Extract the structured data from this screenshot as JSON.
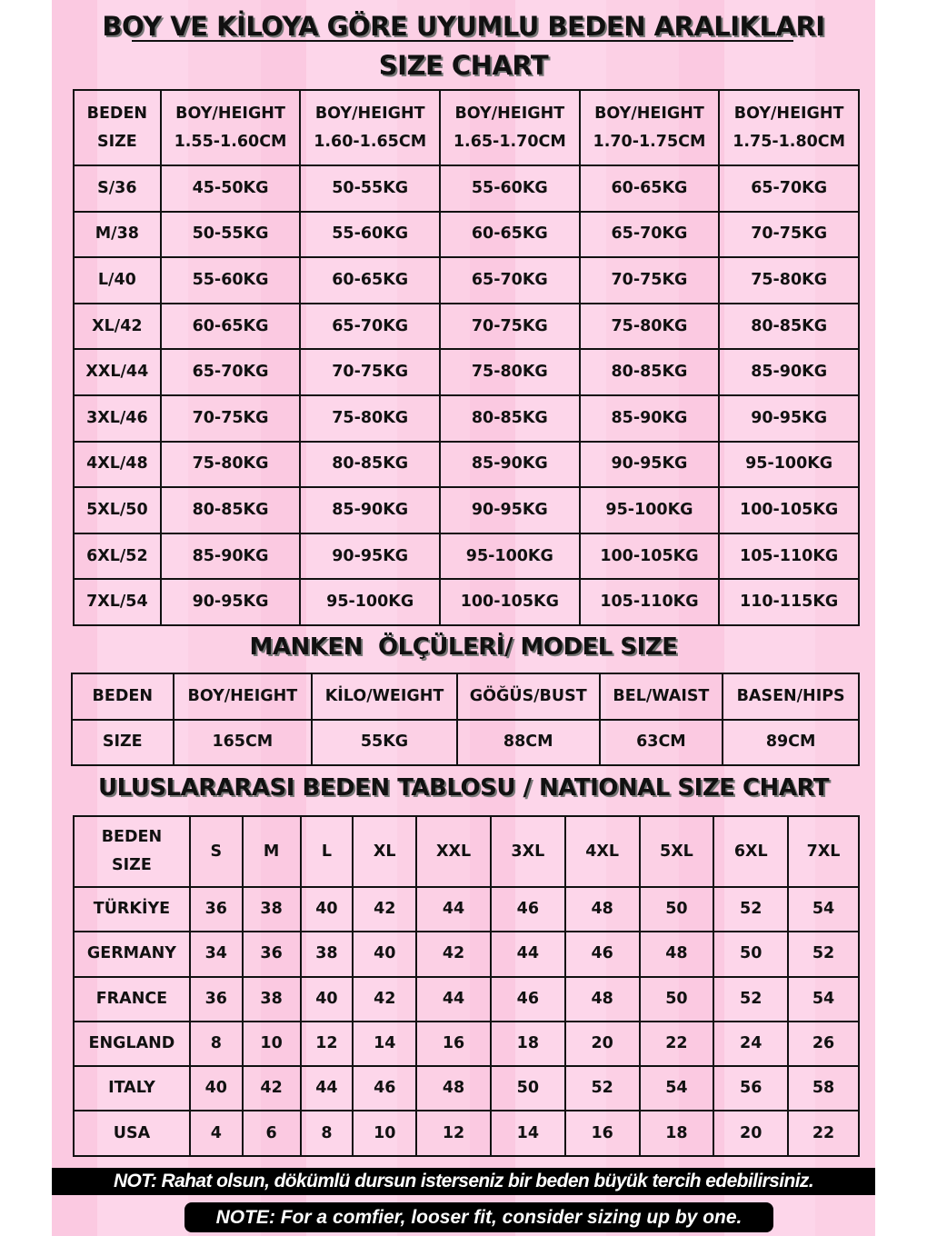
{
  "title_tr": "BOY VE KİLOYA GÖRE UYUMLU BEDEN ARALIKLARI",
  "title_en": "SIZE CHART",
  "size_chart": {
    "headers": [
      [
        "BEDEN",
        "SIZE"
      ],
      [
        "BOY/HEIGHT",
        "1.55-1.60CM"
      ],
      [
        "BOY/HEIGHT",
        "1.60-1.65CM"
      ],
      [
        "BOY/HEIGHT",
        "1.65-1.70CM"
      ],
      [
        "BOY/HEIGHT",
        "1.70-1.75CM"
      ],
      [
        "BOY/HEIGHT",
        "1.75-1.80CM"
      ]
    ],
    "rows": [
      [
        "S/36",
        "45-50KG",
        "50-55KG",
        "55-60KG",
        "60-65KG",
        "65-70KG"
      ],
      [
        "M/38",
        "50-55KG",
        "55-60KG",
        "60-65KG",
        "65-70KG",
        "70-75KG"
      ],
      [
        "L/40",
        "55-60KG",
        "60-65KG",
        "65-70KG",
        "70-75KG",
        "75-80KG"
      ],
      [
        "XL/42",
        "60-65KG",
        "65-70KG",
        "70-75KG",
        "75-80KG",
        "80-85KG"
      ],
      [
        "XXL/44",
        "65-70KG",
        "70-75KG",
        "75-80KG",
        "80-85KG",
        "85-90KG"
      ],
      [
        "3XL/46",
        "70-75KG",
        "75-80KG",
        "80-85KG",
        "85-90KG",
        "90-95KG"
      ],
      [
        "4XL/48",
        "75-80KG",
        "80-85KG",
        "85-90KG",
        "90-95KG",
        "95-100KG"
      ],
      [
        "5XL/50",
        "80-85KG",
        "85-90KG",
        "90-95KG",
        "95-100KG",
        "100-105KG"
      ],
      [
        "6XL/52",
        "85-90KG",
        "90-95KG",
        "95-100KG",
        "100-105KG",
        "105-110KG"
      ],
      [
        "7XL/54",
        "90-95KG",
        "95-100KG",
        "100-105KG",
        "105-110KG",
        "110-115KG"
      ]
    ]
  },
  "model_title": "MANKEN  ÖLÇÜLERİ/ MODEL SIZE",
  "model": {
    "headers": [
      "BEDEN",
      "BOY/HEIGHT",
      "KİLO/WEIGHT",
      "GÖĞÜS/BUST",
      "BEL/WAIST",
      "BASEN/HIPS"
    ],
    "values": [
      "SIZE",
      "165CM",
      "55KG",
      "88CM",
      "63CM",
      "89CM"
    ]
  },
  "national_title": "ULUSLARARASI BEDEN TABLOSU / NATIONAL SIZE CHART",
  "national": {
    "headers": [
      [
        "BEDEN",
        "SIZE"
      ],
      [
        "S"
      ],
      [
        "M"
      ],
      [
        "L"
      ],
      [
        "XL"
      ],
      [
        "XXL"
      ],
      [
        "3XL"
      ],
      [
        "4XL"
      ],
      [
        "5XL"
      ],
      [
        "6XL"
      ],
      [
        "7XL"
      ]
    ],
    "rows": [
      [
        "TÜRKİYE",
        "36",
        "38",
        "40",
        "42",
        "44",
        "46",
        "48",
        "50",
        "52",
        "54"
      ],
      [
        "GERMANY",
        "34",
        "36",
        "38",
        "40",
        "42",
        "44",
        "46",
        "48",
        "50",
        "52"
      ],
      [
        "FRANCE",
        "36",
        "38",
        "40",
        "42",
        "44",
        "46",
        "48",
        "50",
        "52",
        "54"
      ],
      [
        "ENGLAND",
        "8",
        "10",
        "12",
        "14",
        "16",
        "18",
        "20",
        "22",
        "24",
        "26"
      ],
      [
        "ITALY",
        "40",
        "42",
        "44",
        "46",
        "48",
        "50",
        "52",
        "54",
        "56",
        "58"
      ],
      [
        "USA",
        "4",
        "6",
        "8",
        "10",
        "12",
        "14",
        "16",
        "18",
        "20",
        "22"
      ]
    ]
  },
  "note_tr": "NOT: Rahat olsun, dökümlü dursun isterseniz bir beden büyük tercih edebilirsiniz.",
  "note_en": "NOTE: For a comfier, looser fit, consider sizing up by one.",
  "colors": {
    "background": "#fbc9e1",
    "text": "#111111",
    "note_bg": "#000000"
  }
}
